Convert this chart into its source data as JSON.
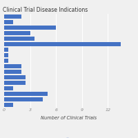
{
  "title": "Clinical Trial Disease Indications",
  "xlabel": "Number of Clinical Trials",
  "values": [
    2,
    1,
    6,
    3,
    3.5,
    13.5,
    0.5,
    0.5,
    0.5,
    2,
    2,
    2.5,
    2.5,
    1,
    5,
    4.5,
    1
  ],
  "bar_color": "#4472C4",
  "xlim": [
    0,
    15
  ],
  "xticks": [
    0,
    3,
    6,
    9,
    12
  ],
  "background_color": "#f0f0f0",
  "title_fontsize": 5.5,
  "xlabel_fontsize": 4.8,
  "tick_fontsize": 4.5,
  "legend_color": "#4472C4"
}
